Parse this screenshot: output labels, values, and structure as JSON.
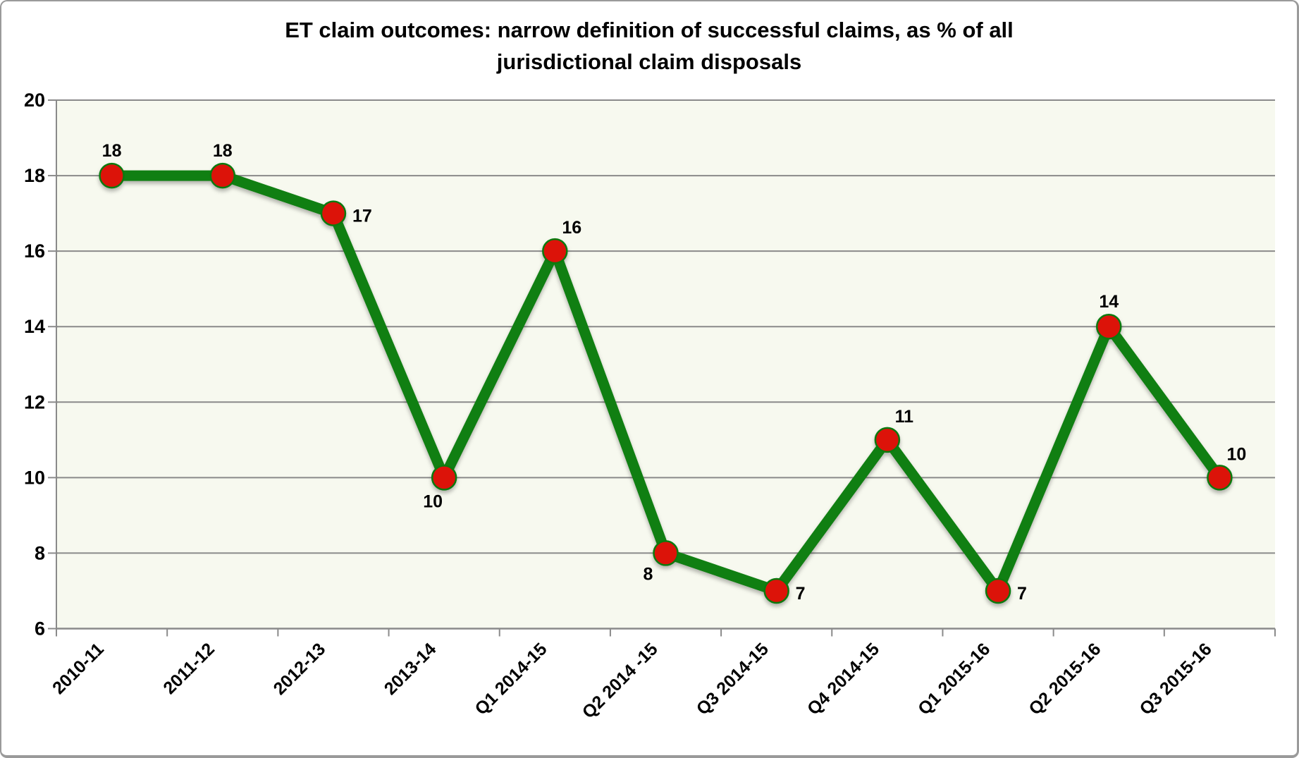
{
  "chart_data": {
    "type": "line",
    "title": "ET claim outcomes: narrow definition of successful claims, as % of all jurisdictional claim disposals",
    "title_lines": [
      "ET claim outcomes: narrow definition of successful claims, as % of all",
      "jurisdictional claim disposals"
    ],
    "categories": [
      "2010-11",
      "2011-12",
      "2012-13",
      "2013-14",
      "Q1 2014-15",
      "Q2 2014 -15",
      "Q3 2014-15",
      "Q4 2014-15",
      "Q1 2015-16",
      "Q2 2015-16",
      "Q3 2015-16"
    ],
    "values": [
      18,
      18,
      17,
      10,
      16,
      8,
      7,
      11,
      7,
      14,
      10
    ],
    "data_labels": [
      "18",
      "18",
      "17",
      "10",
      "16",
      "8",
      "7",
      "11",
      "7",
      "14",
      "10"
    ],
    "label_placements": [
      "above",
      "above",
      "right",
      "below",
      "above-right",
      "below-left",
      "right",
      "above-right",
      "right",
      "above",
      "above-right"
    ],
    "xlabel": "",
    "ylabel": "",
    "ylim": [
      6,
      20
    ],
    "yticks": [
      6,
      8,
      10,
      12,
      14,
      16,
      18,
      20
    ],
    "grid": true,
    "legend_position": "none",
    "colors": {
      "line": "#107f12",
      "marker_fill": "#dc1309",
      "marker_stroke": "#0b7a0e",
      "plot_background": "#f7f9ef",
      "gridline": "#8a8a8a",
      "axis": "#8a8a8a",
      "text": "#000000",
      "frame_border": "#9a9a9a",
      "background": "#ffffff"
    }
  }
}
